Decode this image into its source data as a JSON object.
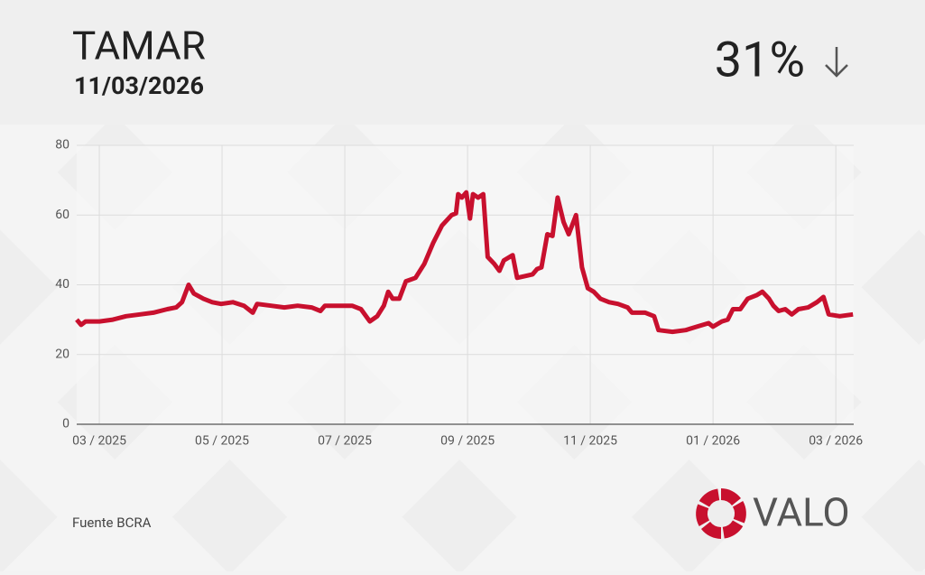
{
  "header": {
    "title": "TAMAR",
    "date": "11/03/2026",
    "value": "31%"
  },
  "footer": {
    "source": "Fuente BCRA",
    "brand": "VALO"
  },
  "chart_data": {
    "type": "line",
    "color": "#c8102e",
    "grid": true,
    "x": [
      2025.136,
      2025.142,
      2025.148,
      2025.167,
      2025.185,
      2025.203,
      2025.222,
      2025.24,
      2025.259,
      2025.271,
      2025.279,
      2025.288,
      2025.295,
      2025.308,
      2025.32,
      2025.332,
      2025.348,
      2025.363,
      2025.375,
      2025.381,
      2025.4,
      2025.418,
      2025.436,
      2025.455,
      2025.467,
      2025.473,
      2025.491,
      2025.51,
      2025.522,
      2025.534,
      2025.544,
      2025.553,
      2025.559,
      2025.565,
      2025.574,
      2025.583,
      2025.596,
      2025.608,
      2025.62,
      2025.632,
      2025.645,
      2025.651,
      2025.654,
      2025.659,
      2025.665,
      2025.67,
      2025.674,
      2025.681,
      2025.688,
      2025.694,
      2025.703,
      2025.71,
      2025.716,
      2025.728,
      2025.734,
      2025.745,
      2025.755,
      2025.761,
      2025.767,
      2025.775,
      2025.782,
      2025.789,
      2025.797,
      2025.804,
      2025.814,
      2025.822,
      2025.83,
      2025.838,
      2025.847,
      2025.859,
      2025.871,
      2025.884,
      2025.89,
      2025.908,
      2025.92,
      2025.926,
      2025.945,
      2025.963,
      2025.978,
      2025.994,
      2026.0,
      2026.012,
      2026.02,
      2026.027,
      2026.037,
      2026.047,
      2026.059,
      2026.067,
      2026.076,
      2026.082,
      2026.089,
      2026.098,
      2026.107,
      2026.116,
      2026.129,
      2026.141,
      2026.15,
      2026.157,
      2026.172,
      2026.19
    ],
    "values": [
      30,
      28.5,
      29.5,
      29.5,
      30,
      31,
      31.5,
      32,
      33,
      33.5,
      35,
      40,
      37.5,
      36,
      35,
      34.5,
      35,
      34,
      32,
      34.5,
      34,
      33.5,
      34,
      33.5,
      32.5,
      34,
      34,
      34,
      33,
      29.5,
      31,
      34,
      38,
      36,
      36,
      41,
      42,
      46,
      52,
      57,
      60,
      60.5,
      66,
      65,
      66.5,
      59,
      66,
      65,
      66,
      48,
      46,
      44,
      47,
      48.5,
      42,
      42.5,
      43,
      44.5,
      45,
      54.5,
      54,
      65,
      58,
      54.5,
      60,
      45,
      39,
      38,
      36,
      35,
      34.5,
      33.5,
      32,
      32,
      31,
      27,
      26.5,
      27,
      28,
      29,
      28,
      29.5,
      30,
      33,
      33,
      36,
      37,
      38,
      36,
      34,
      32.5,
      33,
      31.5,
      33,
      33.5,
      35,
      36.5,
      31.5,
      31,
      31.5
    ],
    "xlim": [
      2025.136,
      2026.191
    ],
    "xticks": [
      {
        "value": 2025.1667,
        "label": "03 / 2025"
      },
      {
        "value": 2025.3333,
        "label": "05 / 2025"
      },
      {
        "value": 2025.5,
        "label": "07 / 2025"
      },
      {
        "value": 2025.6667,
        "label": "09 / 2025"
      },
      {
        "value": 2025.8333,
        "label": "11 / 2025"
      },
      {
        "value": 2026.0,
        "label": "01 / 2026"
      },
      {
        "value": 2026.1667,
        "label": "03 / 2026"
      }
    ],
    "ylim": [
      0,
      80
    ],
    "yticks": [
      0,
      20,
      40,
      60,
      80
    ]
  }
}
